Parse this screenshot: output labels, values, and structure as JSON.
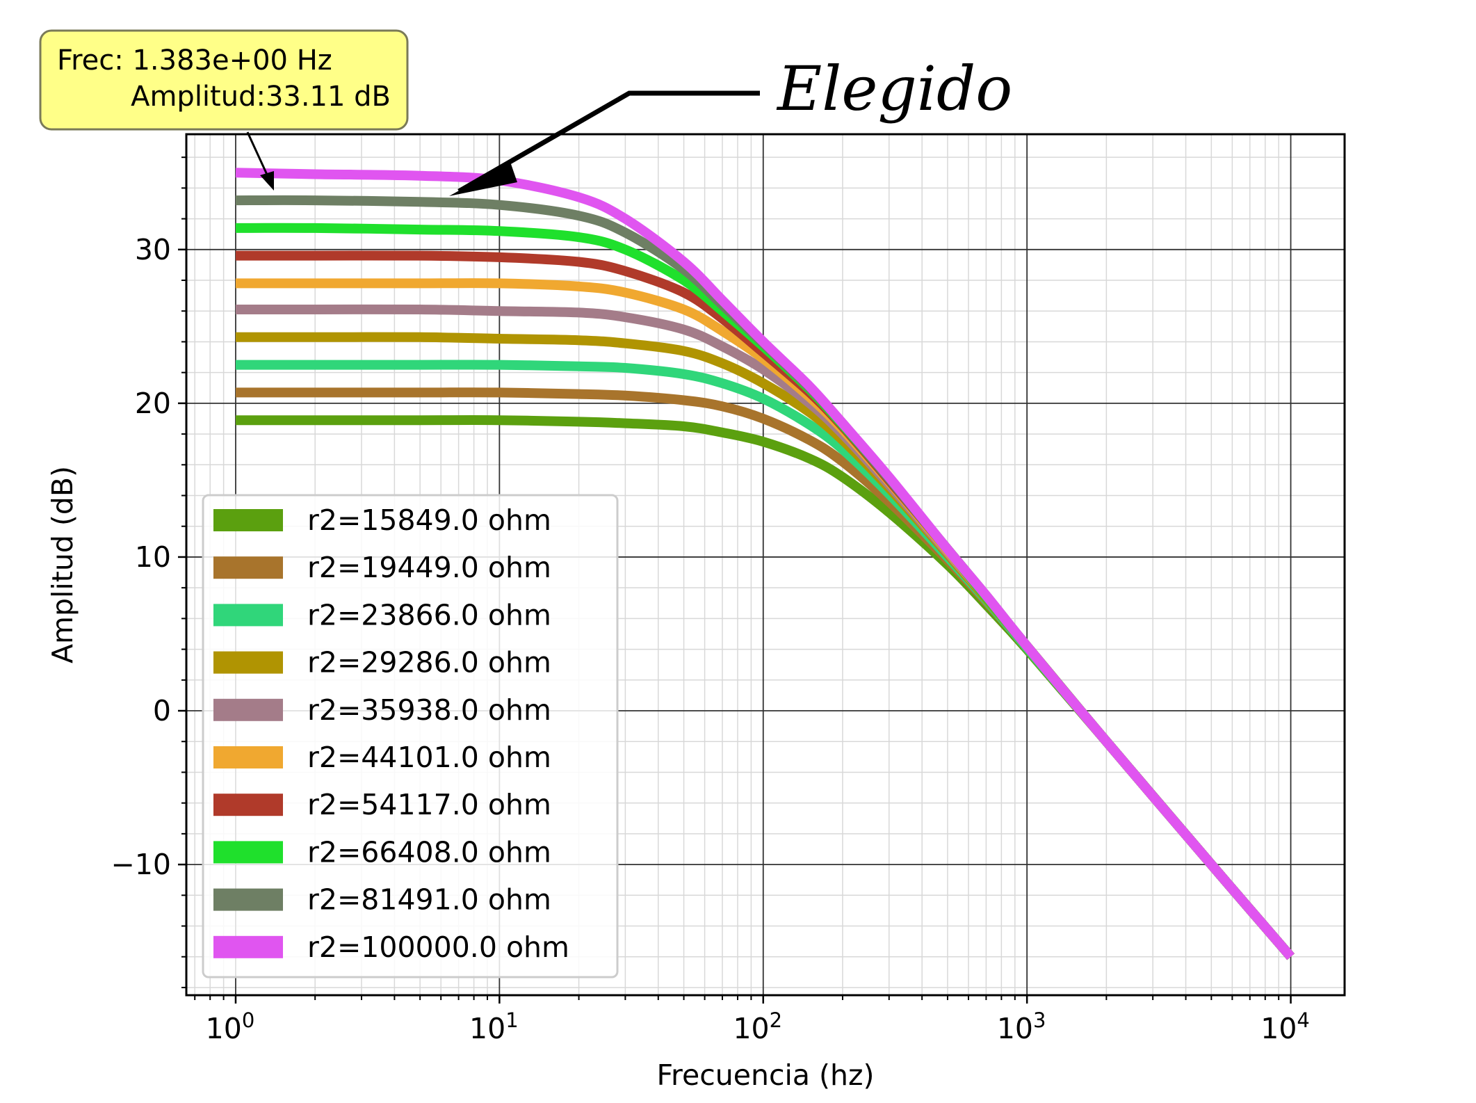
{
  "chart_data": {
    "type": "line",
    "xlabel": "Frecuencia (hz)",
    "ylabel": "Amplitud (dB)",
    "x_scale": "log",
    "xlim": [
      0.65,
      16000
    ],
    "ylim": [
      -18.5,
      37.5
    ],
    "grid": true,
    "legend_position": "lower left",
    "x_ticks": [
      {
        "value": 1,
        "base": "10",
        "exp": "0"
      },
      {
        "value": 10,
        "base": "10",
        "exp": "1"
      },
      {
        "value": 100,
        "base": "10",
        "exp": "2"
      },
      {
        "value": 1000,
        "base": "10",
        "exp": "3"
      },
      {
        "value": 10000,
        "base": "10",
        "exp": "4"
      }
    ],
    "y_ticks": [
      {
        "value": 30,
        "label": "30"
      },
      {
        "value": 20,
        "label": "20"
      },
      {
        "value": 10,
        "label": "10"
      },
      {
        "value": 0,
        "label": "0"
      },
      {
        "value": -10,
        "label": "−10"
      }
    ],
    "x": [
      1,
      2,
      5,
      10,
      20,
      30,
      50,
      70,
      100,
      150,
      200,
      300,
      500,
      700,
      1000,
      2000,
      5000,
      10000
    ],
    "series": [
      {
        "name": "r2=15849.0 ohm",
        "color": "#5ba00f",
        "values": [
          18.9,
          18.9,
          18.9,
          18.9,
          18.8,
          18.7,
          18.5,
          18.1,
          17.5,
          16.4,
          15.2,
          12.9,
          9.5,
          6.9,
          4.0,
          -2.0,
          -10.0,
          -16.0
        ]
      },
      {
        "name": "r2=19449.0 ohm",
        "color": "#a8742c",
        "values": [
          20.7,
          20.7,
          20.7,
          20.7,
          20.6,
          20.5,
          20.2,
          19.8,
          19.0,
          17.6,
          16.2,
          13.6,
          9.8,
          7.1,
          4.1,
          -2.0,
          -10.0,
          -16.0
        ]
      },
      {
        "name": "r2=23866.0 ohm",
        "color": "#30d67a",
        "values": [
          22.5,
          22.5,
          22.5,
          22.5,
          22.4,
          22.3,
          21.9,
          21.3,
          20.3,
          18.6,
          17.0,
          14.1,
          10.0,
          7.2,
          4.1,
          -2.0,
          -10.0,
          -16.0
        ]
      },
      {
        "name": "r2=29286.0 ohm",
        "color": "#b09402",
        "values": [
          24.3,
          24.3,
          24.3,
          24.2,
          24.1,
          23.9,
          23.4,
          22.6,
          21.3,
          19.4,
          17.6,
          14.5,
          10.2,
          7.3,
          4.2,
          -2.0,
          -10.0,
          -16.0
        ]
      },
      {
        "name": "r2=35938.0 ohm",
        "color": "#a47c89",
        "values": [
          26.1,
          26.1,
          26.1,
          26.0,
          25.9,
          25.6,
          24.8,
          23.7,
          22.2,
          20.0,
          18.0,
          14.7,
          10.3,
          7.4,
          4.2,
          -2.0,
          -10.0,
          -16.0
        ]
      },
      {
        "name": "r2=44101.0 ohm",
        "color": "#f0a830",
        "values": [
          27.8,
          27.8,
          27.8,
          27.8,
          27.6,
          27.2,
          26.1,
          24.7,
          22.9,
          20.4,
          18.3,
          14.9,
          10.4,
          7.4,
          4.2,
          -2.0,
          -10.0,
          -16.0
        ]
      },
      {
        "name": "r2=54117.0 ohm",
        "color": "#b03a2a",
        "values": [
          29.6,
          29.6,
          29.6,
          29.5,
          29.2,
          28.6,
          27.2,
          25.5,
          23.3,
          20.7,
          18.5,
          15.0,
          10.5,
          7.4,
          4.2,
          -2.0,
          -10.0,
          -16.0
        ]
      },
      {
        "name": "r2=66408.0 ohm",
        "color": "#1fe02c",
        "values": [
          31.4,
          31.4,
          31.3,
          31.2,
          30.8,
          30.0,
          28.0,
          26.0,
          23.7,
          20.9,
          18.6,
          15.1,
          10.5,
          7.4,
          4.2,
          -2.0,
          -10.0,
          -16.0
        ]
      },
      {
        "name": "r2=81491.0 ohm",
        "color": "#6e7f64",
        "values": [
          33.2,
          33.2,
          33.1,
          32.9,
          32.2,
          31.1,
          28.7,
          26.4,
          23.9,
          21.0,
          18.7,
          15.1,
          10.5,
          7.5,
          4.2,
          -2.0,
          -10.0,
          -16.0
        ]
      },
      {
        "name": "r2=100000.0 ohm",
        "color": "#e055f0",
        "values": [
          35.0,
          34.9,
          34.8,
          34.5,
          33.4,
          32.0,
          29.2,
          26.7,
          24.0,
          21.1,
          18.7,
          15.2,
          10.5,
          7.5,
          4.2,
          -2.0,
          -10.0,
          -16.0
        ]
      }
    ],
    "tooltip": {
      "line1": "Frec: 1.383e+00 Hz",
      "line2": "Amplitud:33.11 dB",
      "bg_color": "#ffff88",
      "border_color": "#7a7a58",
      "point": {
        "x": 1.383,
        "y": 33.11
      }
    },
    "annotation": {
      "text": "Elegido",
      "point": {
        "x": 6.5,
        "y": 33.3
      }
    }
  }
}
